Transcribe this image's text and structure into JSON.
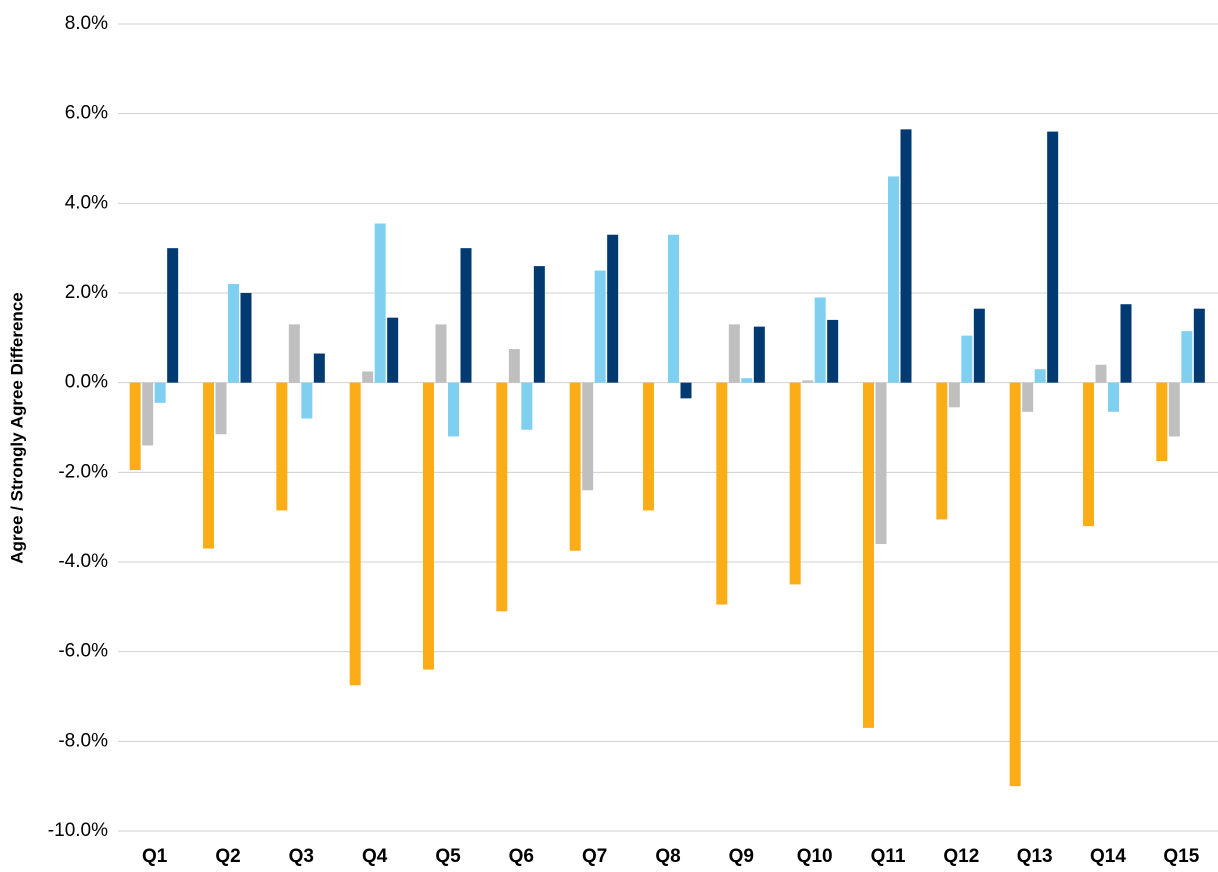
{
  "chart_data": {
    "type": "bar",
    "y_label": "Agree / Strongly Agree Difference",
    "categories": [
      "Q1",
      "Q2",
      "Q3",
      "Q4",
      "Q5",
      "Q6",
      "Q7",
      "Q8",
      "Q9",
      "Q10",
      "Q11",
      "Q12",
      "Q13",
      "Q14",
      "Q15"
    ],
    "series": [
      {
        "color": "#fbad18",
        "values": [
          -1.95,
          -3.7,
          -2.85,
          -6.75,
          -6.4,
          -5.1,
          -3.75,
          -2.85,
          -4.95,
          -4.5,
          -7.7,
          -3.05,
          -9.0,
          -3.2,
          -1.75
        ]
      },
      {
        "color": "#bfbfbf",
        "values": [
          -1.4,
          -1.15,
          1.3,
          0.25,
          1.3,
          0.75,
          -2.4,
          0,
          1.3,
          0.05,
          -3.6,
          -0.55,
          -0.65,
          0.4,
          -1.2
        ]
      },
      {
        "color": "#7fd0f0",
        "values": [
          -0.45,
          2.2,
          -0.8,
          3.55,
          -1.2,
          -1.05,
          2.5,
          3.3,
          0.1,
          1.9,
          4.6,
          1.05,
          0.3,
          -0.65,
          1.15
        ]
      },
      {
        "color": "#003a70",
        "values": [
          3.0,
          2.0,
          0.65,
          1.45,
          3.0,
          2.6,
          3.3,
          -0.35,
          1.25,
          1.4,
          5.65,
          1.65,
          5.6,
          1.75,
          1.65
        ]
      }
    ],
    "ylim": [
      -10,
      8
    ],
    "yticks": [
      {
        "value": -10,
        "label": "-10.0%"
      },
      {
        "value": -8,
        "label": "-8.0%"
      },
      {
        "value": -6,
        "label": "-6.0%"
      },
      {
        "value": -4,
        "label": "-4.0%"
      },
      {
        "value": -2,
        "label": "-2.0%"
      },
      {
        "value": 0,
        "label": "0.0%"
      },
      {
        "value": 2,
        "label": "2.0%"
      },
      {
        "value": 4,
        "label": "4.0%"
      },
      {
        "value": 6,
        "label": "6.0%"
      },
      {
        "value": 8,
        "label": "8.0%"
      }
    ],
    "grid": true
  }
}
